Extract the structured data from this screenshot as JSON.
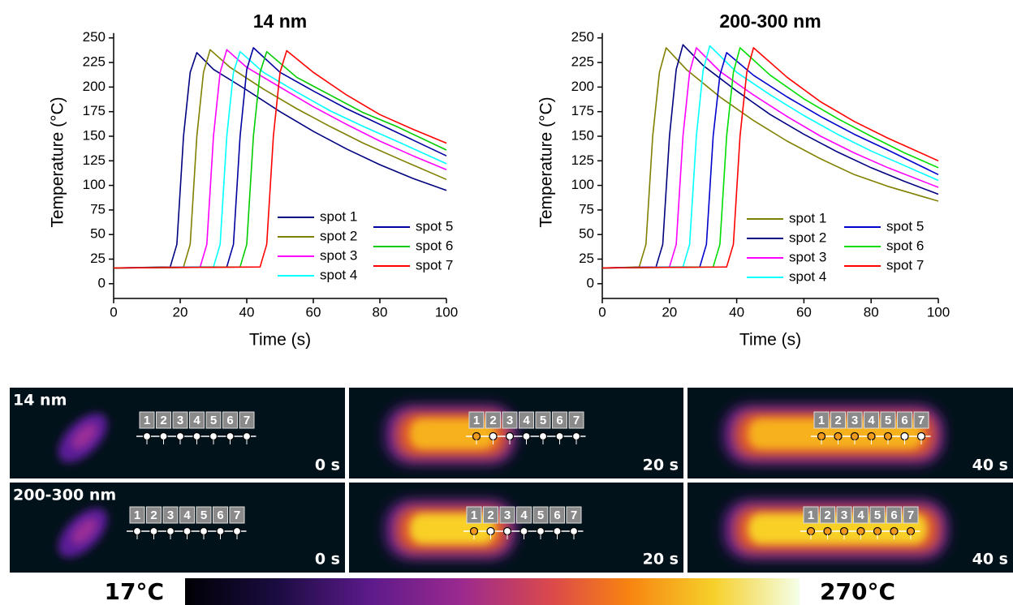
{
  "chart_data": [
    {
      "type": "line",
      "title": "14 nm",
      "x_label": "Time (s)",
      "y_label": "Temperature (°C)",
      "xlim": [
        0,
        100
      ],
      "xticks": [
        0,
        20,
        40,
        60,
        80,
        100
      ],
      "ylim": [
        -15,
        255
      ],
      "yticks": [
        0,
        25,
        50,
        75,
        100,
        125,
        150,
        175,
        200,
        225,
        250
      ],
      "series": [
        {
          "name": "spot 1",
          "color": "#000080",
          "x": [
            0,
            17,
            19,
            21,
            23,
            25,
            30,
            40,
            50,
            60,
            70,
            80,
            90,
            100
          ],
          "values": [
            16,
            17,
            40,
            150,
            215,
            235,
            218,
            197,
            175,
            155,
            137,
            121,
            107,
            95
          ]
        },
        {
          "name": "spot 2",
          "color": "#808000",
          "x": [
            0,
            21,
            23,
            25,
            27,
            29,
            35,
            45,
            55,
            65,
            75,
            85,
            100
          ],
          "values": [
            16,
            17,
            40,
            150,
            215,
            238,
            220,
            198,
            178,
            160,
            143,
            128,
            106
          ]
        },
        {
          "name": "spot 3",
          "color": "#ff00ff",
          "x": [
            0,
            26,
            28,
            30,
            32,
            34,
            40,
            50,
            60,
            70,
            80,
            90,
            100
          ],
          "values": [
            16,
            17,
            40,
            150,
            215,
            238,
            220,
            200,
            180,
            162,
            145,
            130,
            116
          ]
        },
        {
          "name": "spot 4",
          "color": "#00ffff",
          "x": [
            0,
            30,
            32,
            34,
            36,
            38,
            45,
            55,
            65,
            75,
            85,
            100
          ],
          "values": [
            16,
            17,
            40,
            150,
            215,
            236,
            215,
            195,
            176,
            160,
            145,
            122
          ]
        },
        {
          "name": "spot 5",
          "color": "#0000a0",
          "x": [
            0,
            34,
            36,
            38,
            40,
            42,
            50,
            60,
            70,
            80,
            90,
            100
          ],
          "values": [
            16,
            17,
            40,
            150,
            218,
            240,
            215,
            196,
            178,
            162,
            146,
            130
          ]
        },
        {
          "name": "spot 6",
          "color": "#00cc00",
          "x": [
            0,
            38,
            40,
            42,
            44,
            46,
            55,
            65,
            75,
            85,
            100
          ],
          "values": [
            16,
            17,
            40,
            150,
            215,
            236,
            210,
            192,
            174,
            160,
            136
          ]
        },
        {
          "name": "spot 7",
          "color": "#ff0000",
          "x": [
            0,
            44,
            46,
            48,
            50,
            52,
            60,
            70,
            80,
            90,
            100
          ],
          "values": [
            16,
            17,
            40,
            150,
            215,
            237,
            215,
            192,
            172,
            157,
            143
          ]
        }
      ]
    },
    {
      "type": "line",
      "title": "200-300 nm",
      "x_label": "Time (s)",
      "y_label": "Temperature (°C)",
      "xlim": [
        0,
        100
      ],
      "xticks": [
        0,
        20,
        40,
        60,
        80,
        100
      ],
      "ylim": [
        -15,
        255
      ],
      "yticks": [
        0,
        25,
        50,
        75,
        100,
        125,
        150,
        175,
        200,
        225,
        250
      ],
      "series": [
        {
          "name": "spot 1",
          "color": "#808000",
          "x": [
            0,
            11,
            13,
            15,
            17,
            19,
            25,
            35,
            45,
            55,
            65,
            75,
            85,
            100
          ],
          "values": [
            16,
            17,
            40,
            150,
            215,
            240,
            218,
            190,
            166,
            145,
            127,
            111,
            99,
            84
          ]
        },
        {
          "name": "spot 2",
          "color": "#000080",
          "x": [
            0,
            16,
            18,
            20,
            22,
            24,
            30,
            40,
            50,
            60,
            70,
            80,
            90,
            100
          ],
          "values": [
            16,
            17,
            40,
            150,
            218,
            243,
            222,
            196,
            172,
            152,
            134,
            118,
            104,
            91
          ]
        },
        {
          "name": "spot 3",
          "color": "#ff00ff",
          "x": [
            0,
            20,
            22,
            24,
            26,
            28,
            35,
            45,
            55,
            65,
            75,
            85,
            100
          ],
          "values": [
            16,
            17,
            40,
            150,
            215,
            240,
            216,
            192,
            170,
            150,
            133,
            118,
            98
          ]
        },
        {
          "name": "spot 4",
          "color": "#00ffff",
          "x": [
            0,
            24,
            26,
            28,
            30,
            32,
            40,
            50,
            60,
            70,
            80,
            90,
            100
          ],
          "values": [
            16,
            17,
            40,
            150,
            217,
            242,
            215,
            192,
            171,
            152,
            135,
            120,
            105
          ]
        },
        {
          "name": "spot 5",
          "color": "#0000cc",
          "x": [
            0,
            29,
            31,
            33,
            35,
            37,
            45,
            55,
            65,
            75,
            85,
            100
          ],
          "values": [
            16,
            17,
            40,
            150,
            212,
            235,
            212,
            190,
            170,
            152,
            136,
            111
          ]
        },
        {
          "name": "spot 6",
          "color": "#00dd00",
          "x": [
            0,
            33,
            35,
            37,
            39,
            41,
            50,
            60,
            70,
            80,
            90,
            100
          ],
          "values": [
            16,
            17,
            40,
            150,
            215,
            240,
            212,
            188,
            168,
            150,
            133,
            118
          ]
        },
        {
          "name": "spot 7",
          "color": "#ff0000",
          "x": [
            0,
            37,
            39,
            41,
            43,
            45,
            55,
            65,
            75,
            85,
            100
          ],
          "values": [
            16,
            17,
            40,
            150,
            215,
            240,
            210,
            185,
            165,
            148,
            125
          ]
        }
      ]
    }
  ],
  "thermal": {
    "spot_labels": [
      "1",
      "2",
      "3",
      "4",
      "5",
      "6",
      "7"
    ],
    "rows": [
      {
        "label": "14 nm",
        "times": [
          "0 s",
          "20 s",
          "40 s"
        ]
      },
      {
        "label": "200-300 nm",
        "times": [
          "0 s",
          "20 s",
          "40 s"
        ]
      }
    ]
  },
  "colorbar": {
    "min_label": "17°C",
    "max_label": "270°C"
  }
}
